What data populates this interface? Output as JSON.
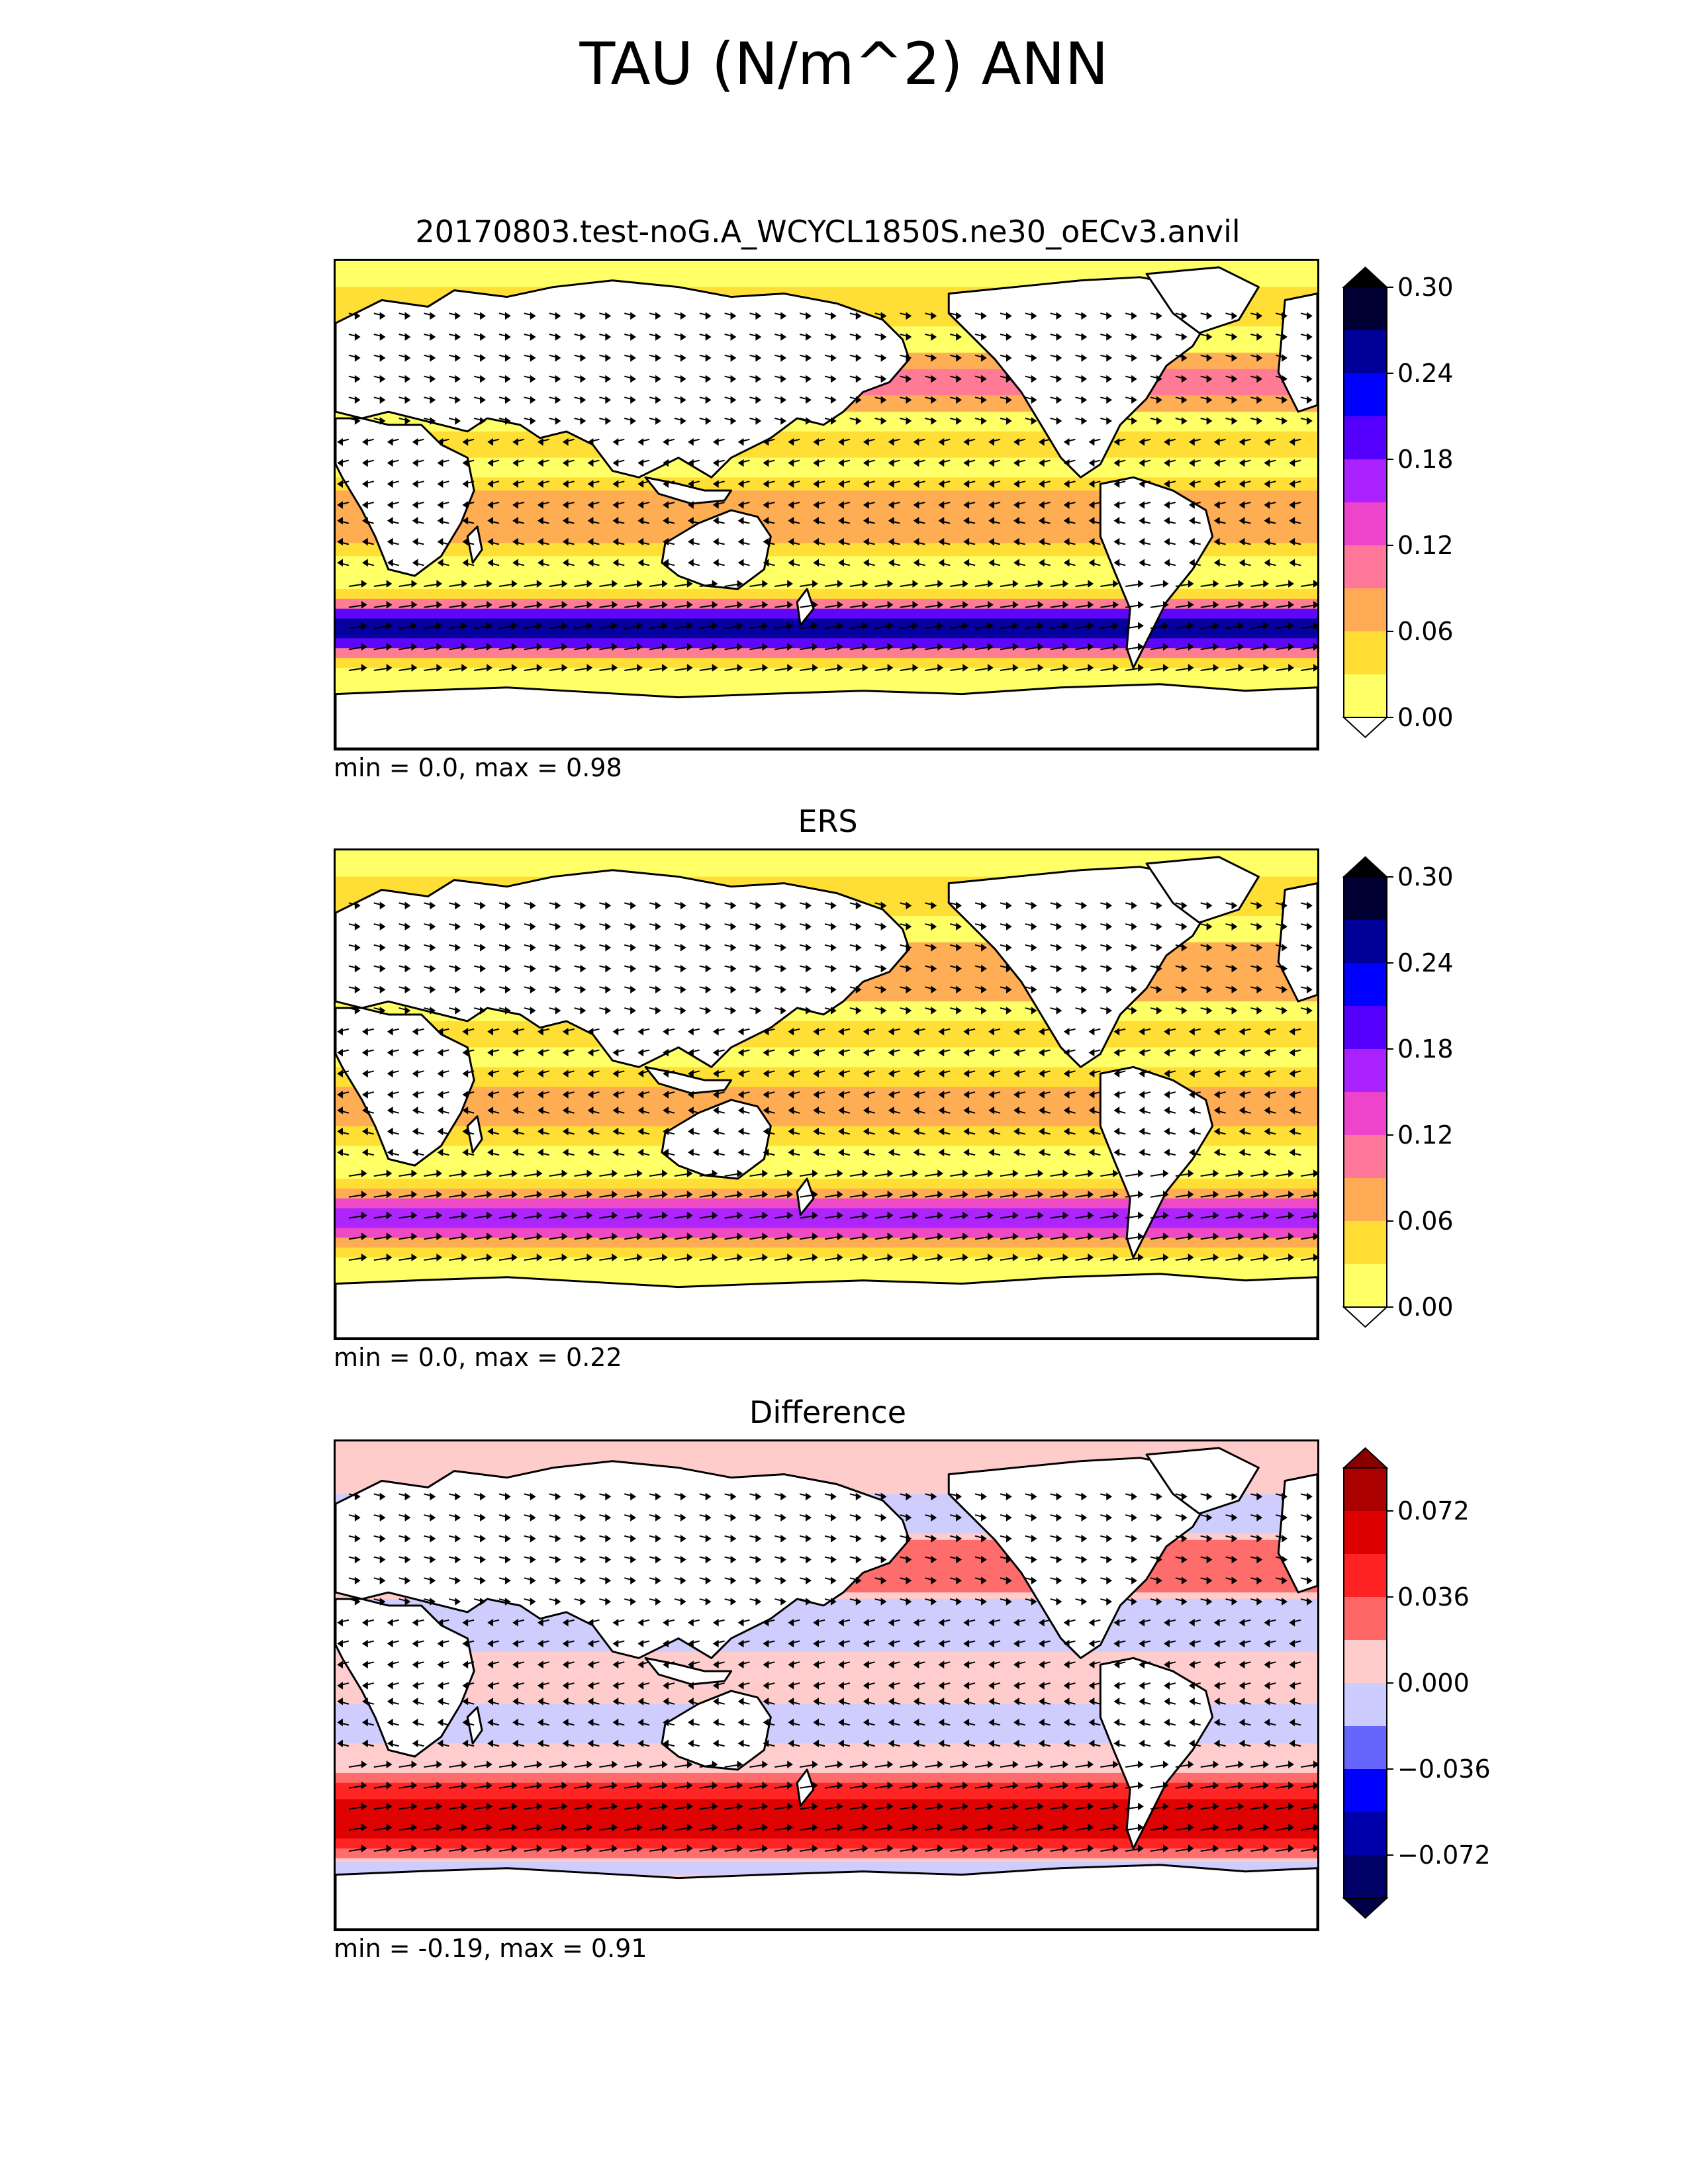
{
  "figure": {
    "title": "TAU (N/m^2) ANN"
  },
  "panels": [
    {
      "title": "20170803.test-noG.A_WCYCL1850S.ne30_oECv3.anvil",
      "stats": "min = 0.0, max = 0.98",
      "colorbar": {
        "ticks": [
          "0.30",
          "0.24",
          "0.18",
          "0.12",
          "0.06",
          "0.00"
        ],
        "colors": [
          "#000033",
          "#000099",
          "#0000ff",
          "#5500ff",
          "#aa22ff",
          "#ee44cc",
          "#ff7799",
          "#ffaa55",
          "#ffdd33",
          "#ffff66"
        ],
        "extend_top": "#000000",
        "extend_bottom": "#ffffff"
      }
    },
    {
      "title": "ERS",
      "stats": "min = 0.0, max = 0.22",
      "colorbar": {
        "ticks": [
          "0.30",
          "0.24",
          "0.18",
          "0.12",
          "0.06",
          "0.00"
        ],
        "colors": [
          "#000033",
          "#000099",
          "#0000ff",
          "#5500ff",
          "#aa22ff",
          "#ee44cc",
          "#ff7799",
          "#ffaa55",
          "#ffdd33",
          "#ffff66"
        ],
        "extend_top": "#000000",
        "extend_bottom": "#ffffff"
      }
    },
    {
      "title": "Difference",
      "stats": "min = -0.19, max = 0.91",
      "colorbar": {
        "ticks": [
          "0.072",
          "0.036",
          "0.000",
          "−0.036",
          "−0.072"
        ],
        "colors": [
          "#aa0000",
          "#dd0000",
          "#ff2222",
          "#ff6666",
          "#ffcccc",
          "#ccccff",
          "#6666ff",
          "#0000ff",
          "#0000aa",
          "#000066"
        ],
        "extend_top": "#880000",
        "extend_bottom": "#000044"
      }
    }
  ]
}
